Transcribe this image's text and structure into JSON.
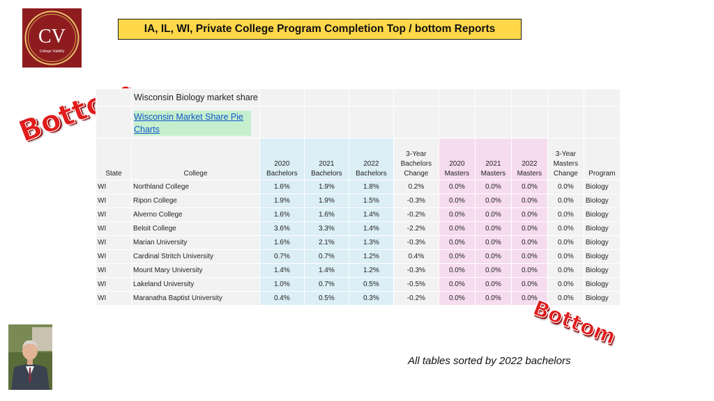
{
  "logo": {
    "monogram": "CV",
    "caption": "College Viability"
  },
  "title": "IA, IL, WI, Private College Program Completion Top / bottom Reports",
  "stamps": {
    "left": "Bottom",
    "right": "Bottom"
  },
  "table": {
    "title": "Wisconsin Biology market share",
    "link": "Wisconsin Market Share Pie Charts",
    "headers": [
      "State",
      "College",
      "2020 Bachelors",
      "2021 Bachelors",
      "2022 Bachelors",
      "3-Year Bachelors Change",
      "2020 Masters",
      "2021 Masters",
      "2022 Masters",
      "3-Year Masters Change",
      "Program"
    ],
    "rows": [
      [
        "WI",
        "Northland College",
        "1.6%",
        "1.9%",
        "1.8%",
        "0.2%",
        "0.0%",
        "0.0%",
        "0.0%",
        "0.0%",
        "Biology"
      ],
      [
        "WI",
        "Ripon College",
        "1.9%",
        "1.9%",
        "1.5%",
        "-0.3%",
        "0.0%",
        "0.0%",
        "0.0%",
        "0.0%",
        "Biology"
      ],
      [
        "WI",
        "Alverno College",
        "1.6%",
        "1.6%",
        "1.4%",
        "-0.2%",
        "0.0%",
        "0.0%",
        "0.0%",
        "0.0%",
        "Biology"
      ],
      [
        "WI",
        "Beloit College",
        "3.6%",
        "3.3%",
        "1.4%",
        "-2.2%",
        "0.0%",
        "0.0%",
        "0.0%",
        "0.0%",
        "Biology"
      ],
      [
        "WI",
        "Marian University",
        "1.6%",
        "2.1%",
        "1.3%",
        "-0.3%",
        "0.0%",
        "0.0%",
        "0.0%",
        "0.0%",
        "Biology"
      ],
      [
        "WI",
        "Cardinal Stritch University",
        "0.7%",
        "0.7%",
        "1.2%",
        "0.4%",
        "0.0%",
        "0.0%",
        "0.0%",
        "0.0%",
        "Biology"
      ],
      [
        "WI",
        "Mount Mary University",
        "1.4%",
        "1.4%",
        "1.2%",
        "-0.3%",
        "0.0%",
        "0.0%",
        "0.0%",
        "0.0%",
        "Biology"
      ],
      [
        "WI",
        "Lakeland University",
        "1.0%",
        "0.7%",
        "0.5%",
        "-0.5%",
        "0.0%",
        "0.0%",
        "0.0%",
        "0.0%",
        "Biology"
      ],
      [
        "WI",
        "Maranatha Baptist University",
        "0.4%",
        "0.5%",
        "0.3%",
        "-0.2%",
        "0.0%",
        "0.0%",
        "0.0%",
        "0.0%",
        "Biology"
      ]
    ]
  },
  "note": "All tables sorted by 2022 bachelors",
  "colors": {
    "title_bg": "#ffd84a",
    "logo_bg": "#8e1c1f",
    "stamp": "#e01b1b",
    "bachelors_bg": "#dceef6",
    "masters_bg": "#f6dcef",
    "link_bg": "#c6efce"
  }
}
